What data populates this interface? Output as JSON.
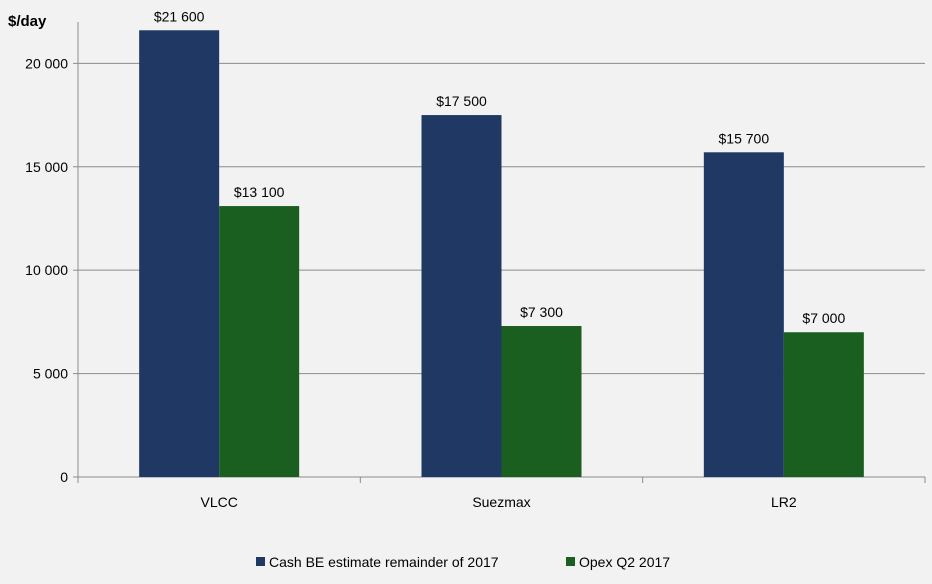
{
  "chart_data": {
    "type": "bar",
    "ylabel": "$/day",
    "categories": [
      "VLCC",
      "Suezmax",
      "LR2"
    ],
    "series": [
      {
        "name": "Cash BE estimate remainder of 2017",
        "values": [
          21600,
          17500,
          15700
        ],
        "labels": [
          "$21 600",
          "$17 500",
          "$15 700"
        ],
        "color": "#1f3864"
      },
      {
        "name": "Opex Q2 2017",
        "values": [
          13100,
          7300,
          7000
        ],
        "labels": [
          "$13 100",
          "$7 300",
          "$7 000"
        ],
        "color": "#1a5e20"
      }
    ],
    "ylim": [
      0,
      22000
    ],
    "yticks": [
      0,
      5000,
      10000,
      15000,
      20000
    ],
    "ytick_labels": [
      "0",
      "5 000",
      "10 000",
      "15 000",
      "20 000"
    ],
    "grid": true,
    "legend_position": "bottom"
  }
}
